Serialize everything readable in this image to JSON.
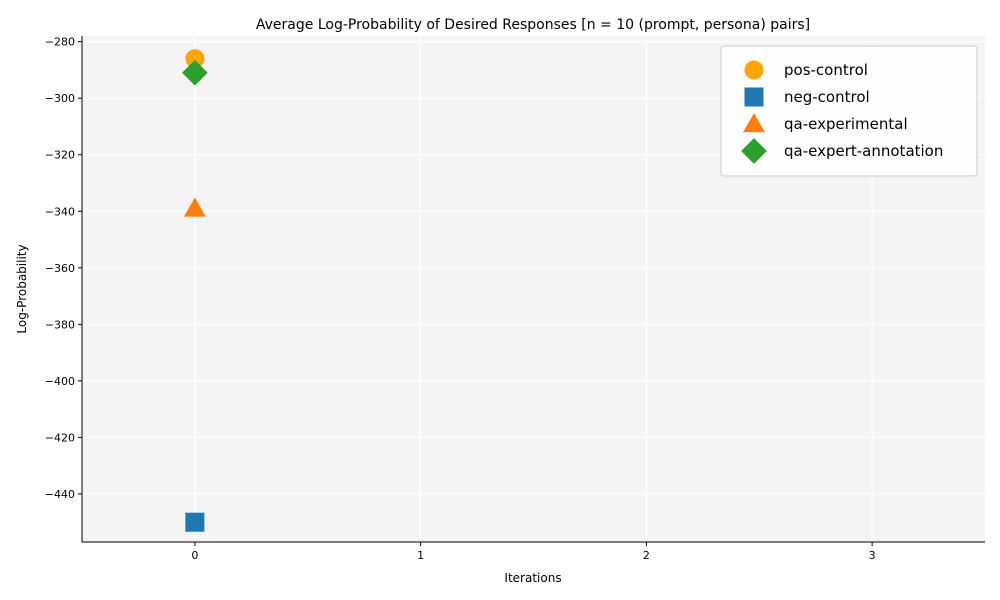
{
  "chart_data": {
    "type": "scatter",
    "title": "Average Log-Probability of Desired Responses [n = 10 (prompt, persona) pairs]",
    "xlabel": "Iterations",
    "ylabel": "Log-Probability",
    "xlim": [
      -0.5,
      3.5
    ],
    "ylim": [
      -457,
      -278
    ],
    "x_ticks": [
      0,
      1,
      2,
      3
    ],
    "y_ticks": [
      -280,
      -300,
      -320,
      -340,
      -360,
      -380,
      -400,
      -420,
      -440
    ],
    "grid": true,
    "legend_position": "top-right",
    "series": [
      {
        "name": "pos-control",
        "marker": "circle",
        "color": "#FFA500",
        "points": [
          {
            "x": 0,
            "y": -286
          }
        ]
      },
      {
        "name": "neg-control",
        "marker": "square",
        "color": "#1F77B4",
        "points": [
          {
            "x": 0,
            "y": -450
          }
        ]
      },
      {
        "name": "qa-experimental",
        "marker": "triangle",
        "color": "#FF7F0E",
        "points": [
          {
            "x": 0,
            "y": -339
          }
        ]
      },
      {
        "name": "qa-expert-annotation",
        "marker": "diamond",
        "color": "#2CA02C",
        "points": [
          {
            "x": 0,
            "y": -291
          }
        ]
      }
    ]
  }
}
